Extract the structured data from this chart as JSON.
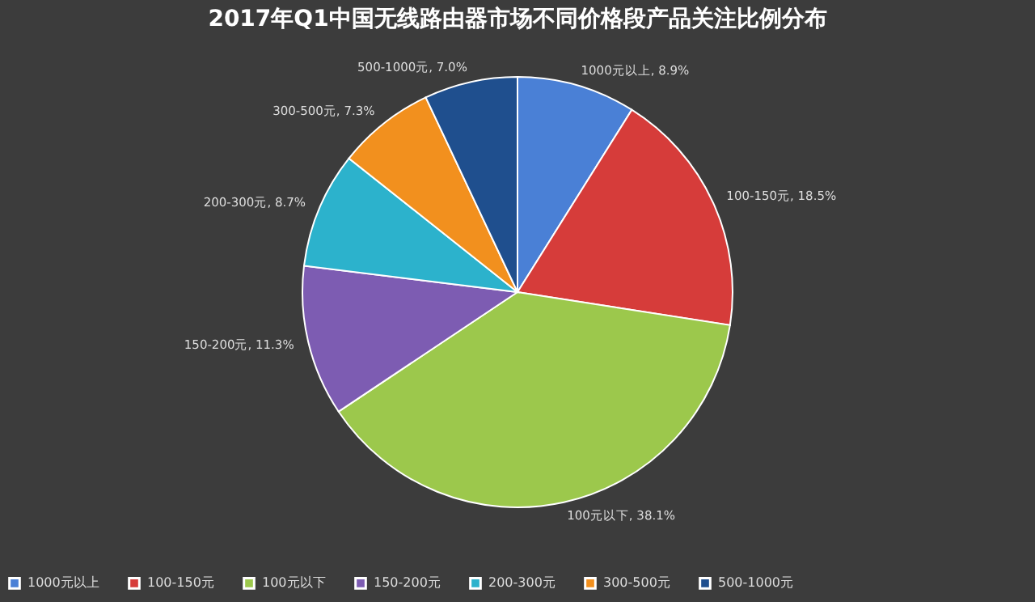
{
  "chart_data": {
    "type": "pie",
    "title": "2017年Q1中国无线路由器市场不同价格段产品关注比例分布",
    "categories": [
      "1000元以上",
      "100-150元",
      "100元以下",
      "150-200元",
      "200-300元",
      "300-500元",
      "500-1000元"
    ],
    "values": [
      8.9,
      18.5,
      38.1,
      11.3,
      8.7,
      7.3,
      7.0
    ],
    "value_labels": [
      "1000元以上, 8.9%",
      "100-150元, 18.5%",
      "100元以下, 38.1%",
      "150-200元, 11.3%",
      "200-300元, 8.7%",
      "300-500元, 7.3%",
      "500-1000元, 7.0%"
    ],
    "colors": [
      "#4a80d6",
      "#d63c3a",
      "#9cc84c",
      "#7d5cb2",
      "#2cb2cc",
      "#f2901e",
      "#1f4f8e"
    ],
    "legend": "bottom"
  }
}
